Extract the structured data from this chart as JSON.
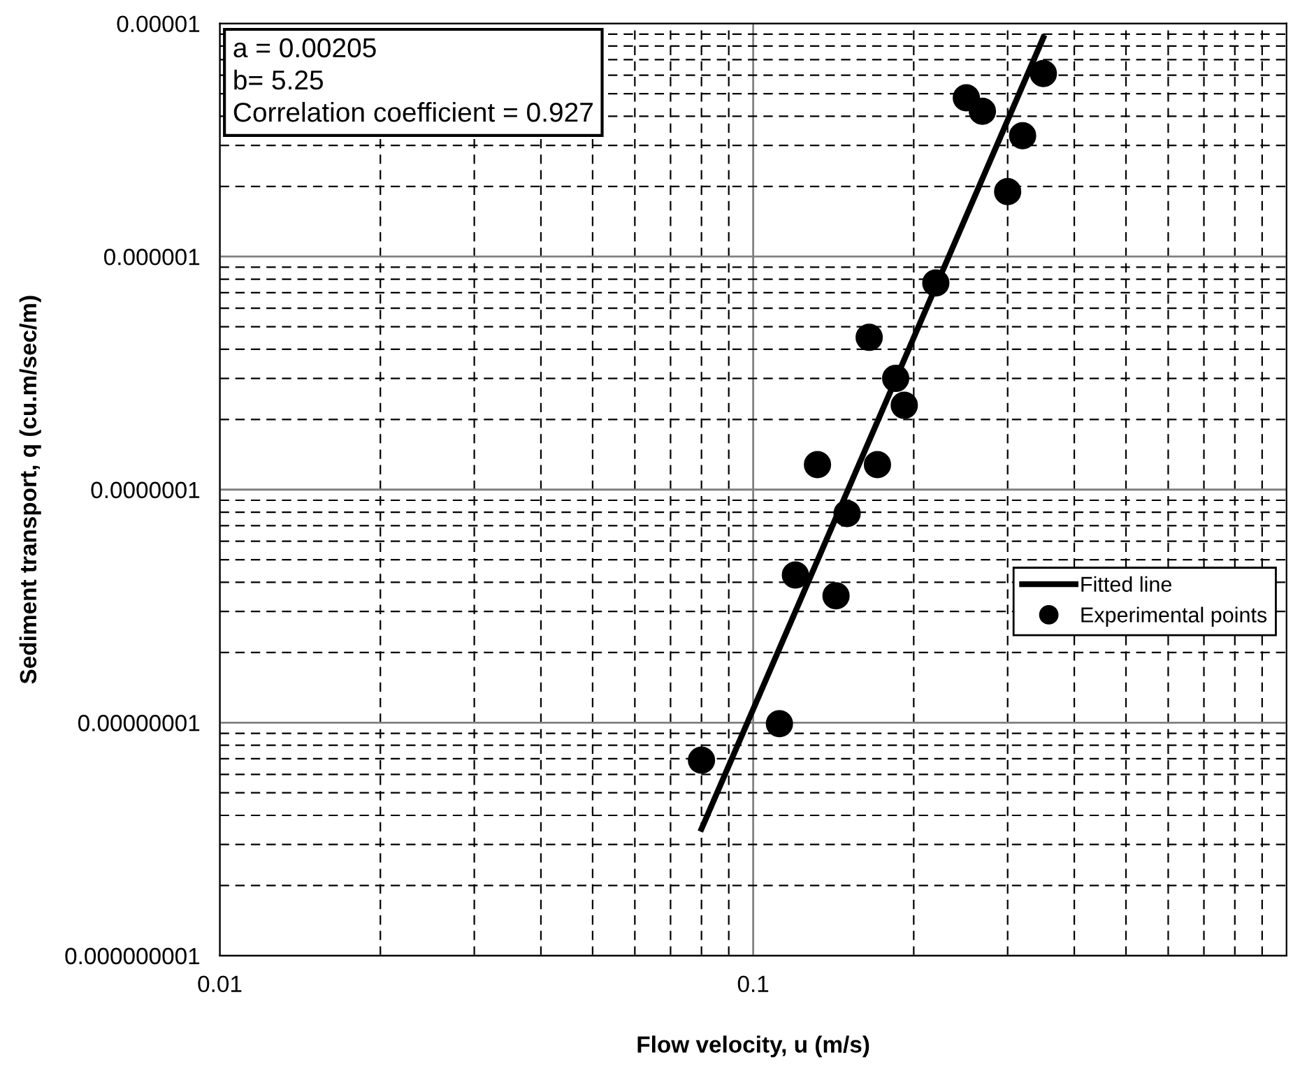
{
  "chart_data": {
    "type": "scatter",
    "xlabel": "Flow velocity, u (m/s)",
    "ylabel": "Sediment transport, q (cu.m/sec/m)",
    "log": "xy",
    "xlim": [
      0.01,
      1
    ],
    "ylim": [
      1e-09,
      1e-05
    ],
    "xticks": [
      0.01,
      0.1
    ],
    "yticks": [
      {
        "value": 1e-09,
        "label": "0.000000001"
      },
      {
        "value": 1e-08,
        "label": "0.00000001"
      },
      {
        "value": 1e-07,
        "label": "0.0000001"
      },
      {
        "value": 1e-06,
        "label": "0.000001"
      },
      {
        "value": 1e-05,
        "label": "0.00001"
      }
    ],
    "grid": true,
    "legend": "right",
    "annotations": [
      "a = 0.00205",
      "b= 5.25",
      "Correlation coefficient = 0.927"
    ],
    "series": [
      {
        "name": "Fitted line",
        "type": "line",
        "color": "#000000",
        "marker": "none",
        "line_style": "solid",
        "x": [
          0.08,
          0.35
        ],
        "values": [
          3.5e-09,
          8.7e-06
        ]
      },
      {
        "name": "Experimental points",
        "color": "#000000",
        "marker": "circle",
        "x": [
          0.08,
          0.112,
          0.12,
          0.143,
          0.132,
          0.15,
          0.171,
          0.165,
          0.185,
          0.192,
          0.22,
          0.251,
          0.269,
          0.3,
          0.32,
          0.35
        ],
        "values": [
          6.9e-09,
          9.9e-09,
          4.3e-08,
          3.5e-08,
          1.28e-07,
          7.9e-08,
          1.28e-07,
          4.5e-07,
          3e-07,
          2.3e-07,
          7.7e-07,
          4.8e-06,
          4.2e-06,
          1.9e-06,
          3.3e-06,
          6.1e-06
        ]
      }
    ]
  }
}
